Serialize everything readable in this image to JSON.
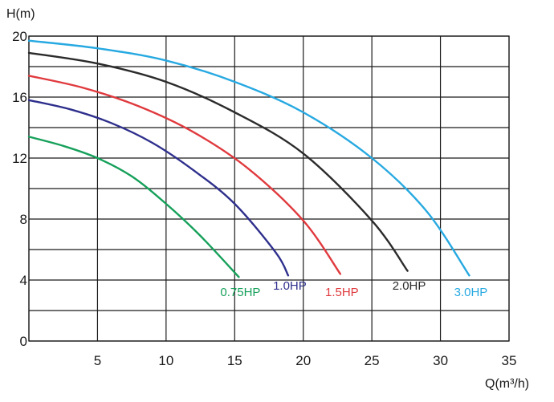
{
  "chart_data": {
    "type": "line",
    "title": "",
    "xlabel": "Q(m³/h)",
    "ylabel": "H(m)",
    "xlim": [
      0,
      35
    ],
    "ylim": [
      0,
      20
    ],
    "x_ticks": [
      "0",
      "5",
      "10",
      "15",
      "20",
      "25",
      "30",
      "35"
    ],
    "y_ticks": [
      "0",
      "4",
      "8",
      "12",
      "16",
      "20"
    ],
    "y_grid_step": 2,
    "grid": true,
    "series": [
      {
        "name": "0.75HP",
        "color": "#16a05a",
        "x": [
          0,
          2.5,
          5,
          7.5,
          10,
          12.5,
          15.3
        ],
        "y": [
          13.4,
          12.8,
          12.0,
          10.8,
          9.0,
          6.9,
          4.2
        ]
      },
      {
        "name": "1.0HP",
        "color": "#2e2f8c",
        "x": [
          0,
          3,
          6,
          9,
          12,
          15,
          18,
          18.9
        ],
        "y": [
          15.8,
          15.2,
          14.3,
          13.0,
          11.2,
          9.0,
          5.8,
          4.3
        ]
      },
      {
        "name": "1.5HP",
        "color": "#e03a3e",
        "x": [
          0,
          4,
          8,
          12,
          16,
          20,
          22.7
        ],
        "y": [
          17.4,
          16.6,
          15.4,
          13.7,
          11.3,
          7.9,
          4.4
        ]
      },
      {
        "name": "2.0HP",
        "color": "#2b2b2b",
        "x": [
          0,
          5,
          10,
          15,
          20,
          25,
          27.6
        ],
        "y": [
          18.9,
          18.2,
          17.0,
          15.0,
          12.3,
          7.9,
          4.6
        ]
      },
      {
        "name": "3.0HP",
        "color": "#27a9e1",
        "x": [
          0,
          5,
          10,
          15,
          20,
          25,
          29,
          32.1
        ],
        "y": [
          19.7,
          19.2,
          18.4,
          17.0,
          15.0,
          12.0,
          8.5,
          4.3
        ]
      }
    ]
  }
}
